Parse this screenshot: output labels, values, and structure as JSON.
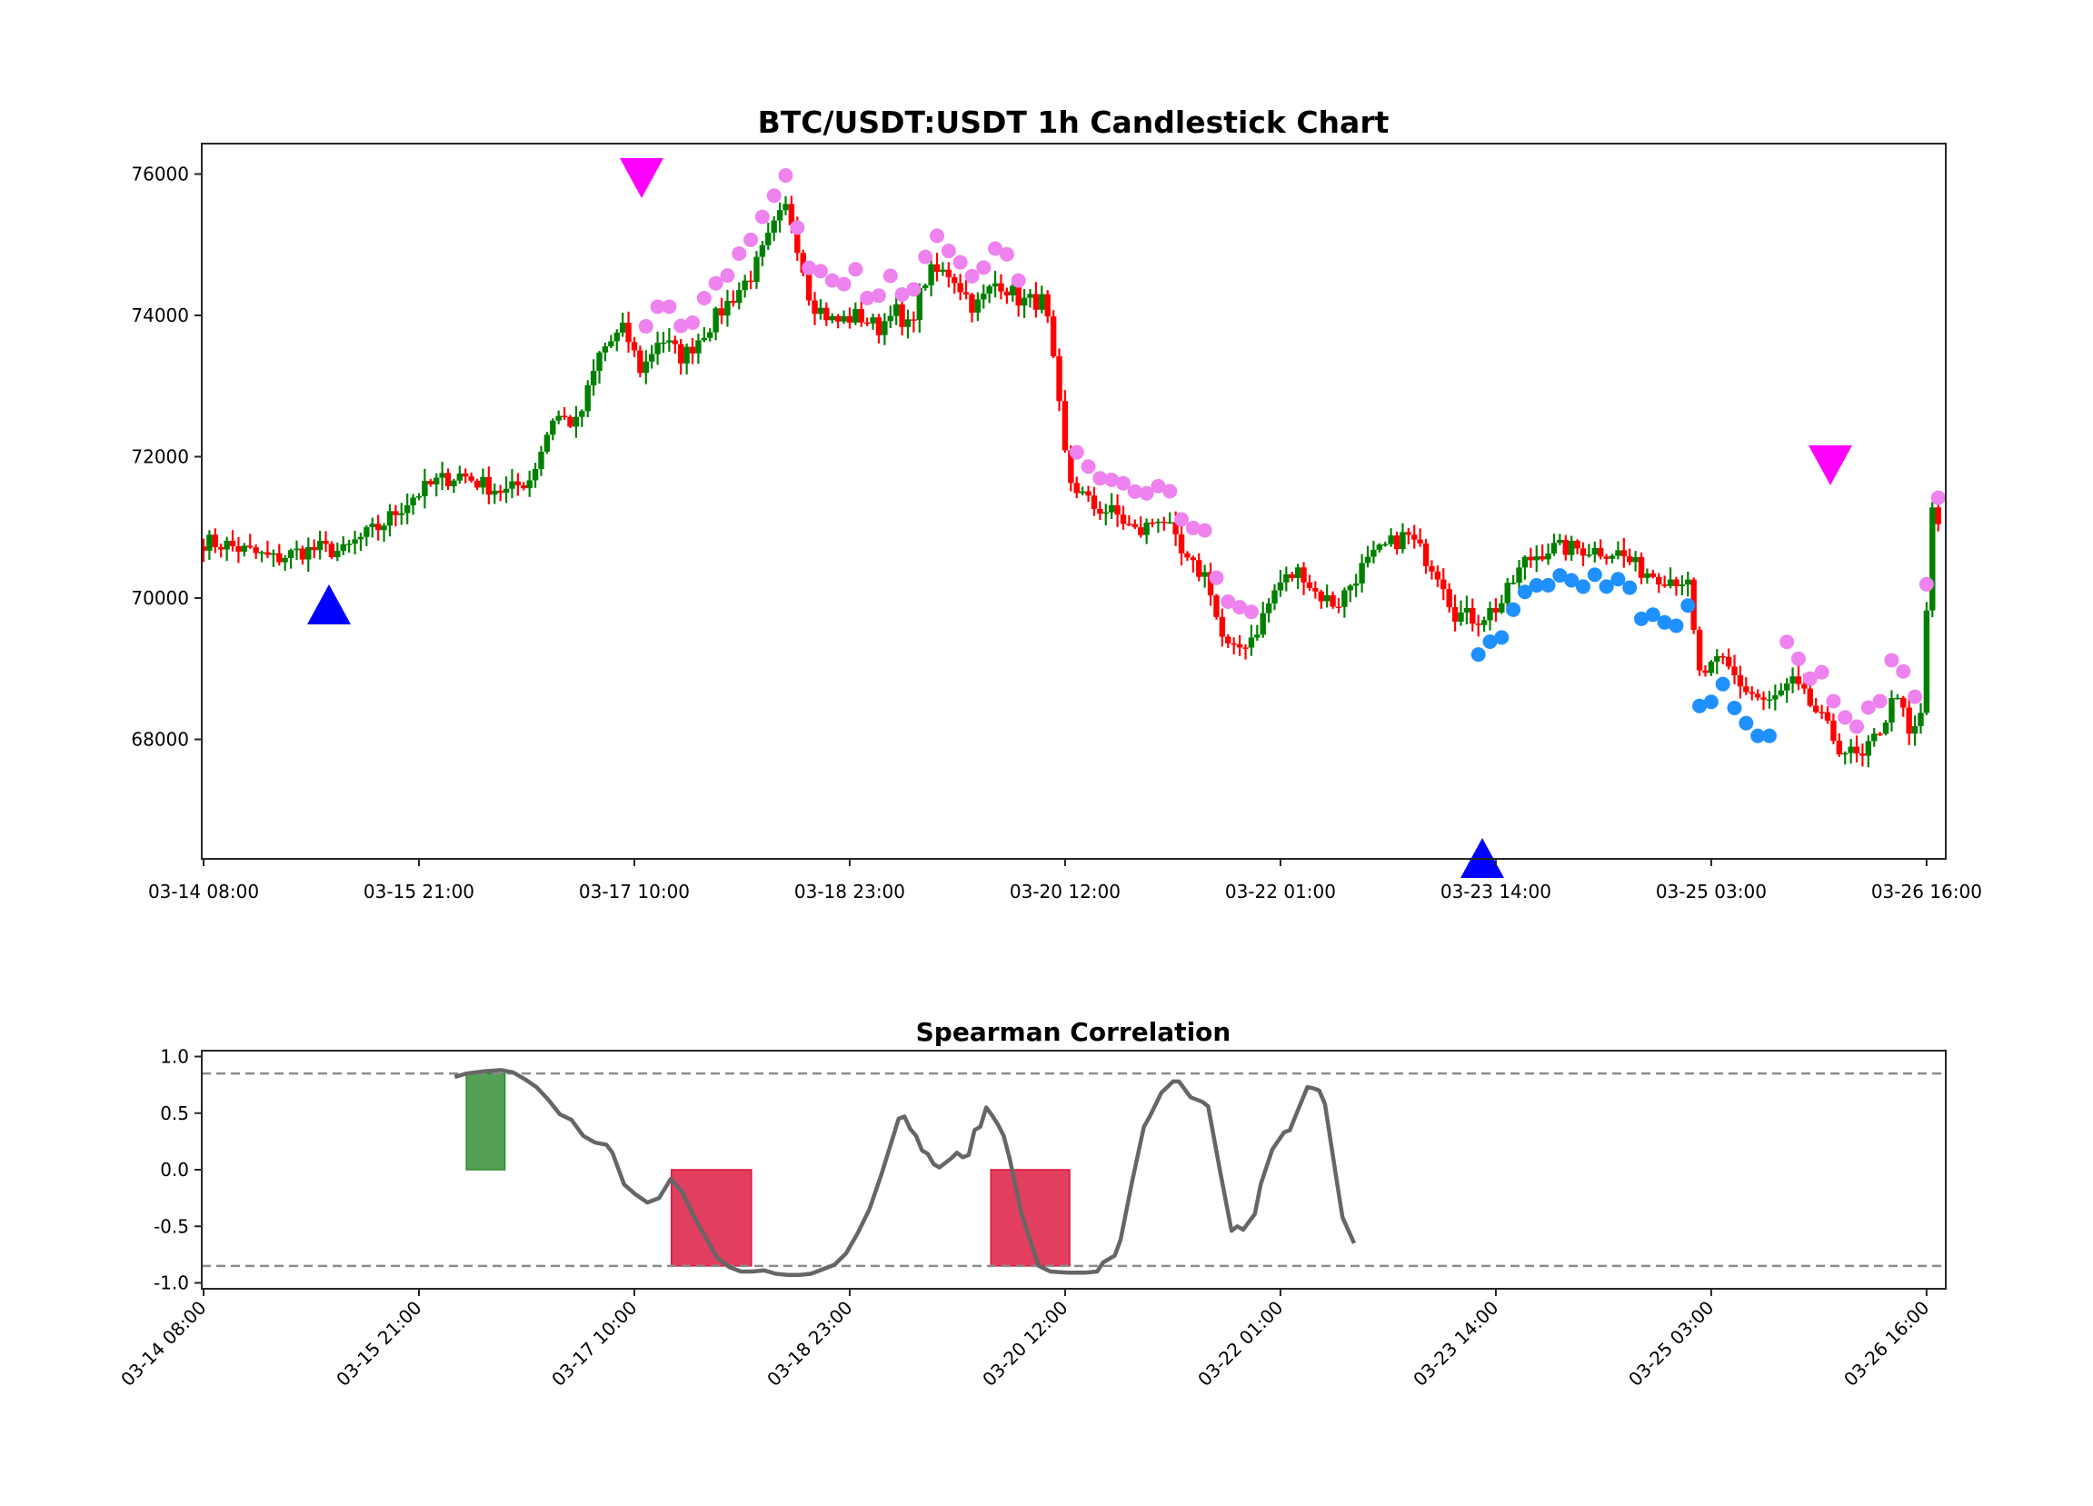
{
  "chart_data": [
    {
      "type": "candlestick",
      "title": "BTC/USDT:USDT 1h Candlestick Chart",
      "xlabel": "",
      "ylabel": "",
      "interval": "1h",
      "x_start": "03-14 08:00",
      "x_end_approx": "03-26 19:00",
      "ylim": [
        66300,
        76250
      ],
      "yticks": [
        68000,
        70000,
        72000,
        74000,
        76000
      ],
      "xticks": [
        "03-14 08:00",
        "03-15 21:00",
        "03-17 10:00",
        "03-18 23:00",
        "03-20 12:00",
        "03-22 01:00",
        "03-23 14:00",
        "03-25 03:00",
        "03-26 16:00"
      ],
      "xtick_hours": [
        0,
        37,
        74,
        111,
        148,
        185,
        222,
        259,
        296
      ],
      "grid": false,
      "colors": {
        "up": "#008000",
        "down": "#ff0000",
        "buy_signal": "#0000ff",
        "sell_signal": "#ff00ff",
        "upper_band_dots": "#ee82ee",
        "lower_band_dots": "#1e90ff"
      },
      "close_path_keypoints": [
        [
          0,
          70800
        ],
        [
          4,
          70750
        ],
        [
          8,
          70650
        ],
        [
          12,
          70550
        ],
        [
          16,
          70650
        ],
        [
          20,
          70700
        ],
        [
          24,
          70650
        ],
        [
          26,
          70800
        ],
        [
          30,
          71000
        ],
        [
          36,
          71450
        ],
        [
          40,
          71650
        ],
        [
          44,
          71750
        ],
        [
          48,
          71600
        ],
        [
          52,
          71500
        ],
        [
          56,
          71700
        ],
        [
          60,
          72600
        ],
        [
          64,
          72450
        ],
        [
          68,
          73500
        ],
        [
          72,
          73800
        ],
        [
          75,
          73200
        ],
        [
          78,
          73700
        ],
        [
          82,
          73400
        ],
        [
          86,
          73800
        ],
        [
          90,
          74200
        ],
        [
          94,
          74600
        ],
        [
          98,
          75300
        ],
        [
          100,
          75550
        ],
        [
          102,
          74900
        ],
        [
          104,
          74200
        ],
        [
          108,
          73900
        ],
        [
          112,
          74000
        ],
        [
          116,
          73800
        ],
        [
          118,
          74200
        ],
        [
          120,
          73700
        ],
        [
          124,
          74600
        ],
        [
          128,
          74600
        ],
        [
          132,
          74100
        ],
        [
          136,
          74500
        ],
        [
          140,
          74200
        ],
        [
          144,
          74200
        ],
        [
          146,
          73000
        ],
        [
          148,
          71700
        ],
        [
          152,
          71300
        ],
        [
          156,
          71200
        ],
        [
          160,
          70900
        ],
        [
          164,
          71200
        ],
        [
          168,
          70500
        ],
        [
          172,
          70300
        ],
        [
          174,
          69500
        ],
        [
          176,
          69200
        ],
        [
          180,
          69500
        ],
        [
          184,
          70200
        ],
        [
          188,
          70400
        ],
        [
          190,
          70100
        ],
        [
          194,
          69900
        ],
        [
          198,
          70400
        ],
        [
          202,
          70700
        ],
        [
          206,
          70900
        ],
        [
          208,
          70700
        ],
        [
          212,
          70300
        ],
        [
          214,
          69800
        ],
        [
          218,
          69700
        ],
        [
          222,
          69900
        ],
        [
          226,
          70500
        ],
        [
          230,
          70700
        ],
        [
          236,
          70700
        ],
        [
          242,
          70650
        ],
        [
          246,
          70400
        ],
        [
          250,
          70300
        ],
        [
          254,
          70250
        ],
        [
          256,
          68900
        ],
        [
          260,
          69100
        ],
        [
          264,
          68700
        ],
        [
          268,
          68500
        ],
        [
          272,
          68800
        ],
        [
          276,
          68400
        ],
        [
          280,
          67900
        ],
        [
          284,
          67700
        ],
        [
          288,
          68300
        ],
        [
          290,
          68700
        ],
        [
          292,
          68000
        ],
        [
          294,
          68300
        ],
        [
          296,
          71300
        ],
        [
          298,
          70600
        ]
      ],
      "buy_markers": [
        {
          "hour": 14,
          "price": 70400
        },
        {
          "hour": 147,
          "price": 67200
        }
      ],
      "sell_markers": [
        {
          "hour": 50,
          "price": 75850
        },
        {
          "hour": 188,
          "price": 72150
        }
      ]
    },
    {
      "type": "line",
      "title": "Spearman Correlation",
      "xlabel": "",
      "ylabel": "",
      "ylim": [
        -1.05,
        1.05
      ],
      "yticks": [
        -1.0,
        -0.5,
        0.0,
        0.5,
        1.0
      ],
      "threshold_lines": [
        0.85,
        -0.85
      ],
      "line_color": "#666666",
      "series": [
        {
          "name": "spearman",
          "points": [
            [
              43,
              0.82
            ],
            [
              45,
              0.85
            ],
            [
              48,
              0.87
            ],
            [
              51,
              0.88
            ],
            [
              53,
              0.86
            ],
            [
              55,
              0.8
            ],
            [
              57,
              0.73
            ],
            [
              59,
              0.62
            ],
            [
              61,
              0.49
            ],
            [
              63,
              0.44
            ],
            [
              65,
              0.3
            ],
            [
              67,
              0.24
            ],
            [
              69,
              0.22
            ],
            [
              70,
              0.15
            ],
            [
              72,
              -0.13
            ],
            [
              74,
              -0.22
            ],
            [
              76,
              -0.29
            ],
            [
              78,
              -0.25
            ],
            [
              80,
              -0.08
            ],
            [
              82,
              -0.2
            ],
            [
              84,
              -0.42
            ],
            [
              86,
              -0.6
            ],
            [
              88,
              -0.78
            ],
            [
              90,
              -0.86
            ],
            [
              92,
              -0.9
            ],
            [
              94,
              -0.9
            ],
            [
              96,
              -0.89
            ],
            [
              98,
              -0.92
            ],
            [
              100,
              -0.93
            ],
            [
              102,
              -0.93
            ],
            [
              104,
              -0.92
            ],
            [
              106,
              -0.88
            ],
            [
              108,
              -0.84
            ],
            [
              110,
              -0.74
            ],
            [
              112,
              -0.56
            ],
            [
              114,
              -0.35
            ],
            [
              116,
              -0.05
            ],
            [
              118,
              0.28
            ],
            [
              119,
              0.45
            ],
            [
              120,
              0.47
            ],
            [
              121,
              0.36
            ],
            [
              122,
              0.3
            ],
            [
              123,
              0.17
            ],
            [
              124,
              0.14
            ],
            [
              125,
              0.05
            ],
            [
              126,
              0.02
            ],
            [
              128,
              0.1
            ],
            [
              129,
              0.15
            ],
            [
              130,
              0.11
            ],
            [
              131,
              0.13
            ],
            [
              132,
              0.35
            ],
            [
              133,
              0.38
            ],
            [
              134,
              0.55
            ],
            [
              135,
              0.48
            ],
            [
              136,
              0.4
            ],
            [
              137,
              0.3
            ],
            [
              138,
              0.1
            ],
            [
              140,
              -0.38
            ],
            [
              142,
              -0.7
            ],
            [
              143,
              -0.85
            ],
            [
              145,
              -0.9
            ],
            [
              148,
              -0.91
            ],
            [
              151,
              -0.91
            ],
            [
              153,
              -0.9
            ],
            [
              154,
              -0.82
            ],
            [
              156,
              -0.76
            ],
            [
              157,
              -0.62
            ],
            [
              159,
              -0.1
            ],
            [
              161,
              0.38
            ],
            [
              162,
              0.47
            ],
            [
              164,
              0.68
            ],
            [
              166,
              0.78
            ],
            [
              167,
              0.78
            ],
            [
              169,
              0.64
            ],
            [
              170,
              0.62
            ],
            [
              171,
              0.6
            ],
            [
              172,
              0.56
            ],
            [
              174,
              0.0
            ],
            [
              176,
              -0.54
            ],
            [
              177,
              -0.5
            ],
            [
              178,
              -0.53
            ],
            [
              180,
              -0.39
            ],
            [
              181,
              -0.13
            ],
            [
              183,
              0.18
            ],
            [
              185,
              0.33
            ],
            [
              186,
              0.35
            ],
            [
              187,
              0.48
            ],
            [
              189,
              0.73
            ],
            [
              190,
              0.72
            ],
            [
              191,
              0.7
            ],
            [
              192,
              0.58
            ],
            [
              194,
              -0.09
            ],
            [
              195,
              -0.42
            ],
            [
              197,
              -0.65
            ]
          ]
        }
      ],
      "shaded_regions": [
        {
          "type": "positive",
          "color": "#2e8b2e",
          "hour_start": 45.0,
          "hour_end": 51.6,
          "from": 0.0,
          "to": 0.85
        },
        {
          "type": "negative",
          "color": "#dc143c",
          "hour_start": 80.1,
          "hour_end": 93.8,
          "from": 0.0,
          "to": -0.85
        },
        {
          "type": "negative",
          "color": "#dc143c",
          "hour_start": 134.8,
          "hour_end": 148.3,
          "from": 0.0,
          "to": -0.85
        }
      ],
      "x_mapping_note": "hours in this panel are on the same axis as the candlestick chart scaled by 0.66 (plot uses the same x ticks)"
    }
  ],
  "top_chart": {
    "title": "BTC/USDT:USDT 1h Candlestick Chart"
  },
  "bottom_chart": {
    "title": "Spearman Correlation"
  },
  "y_tick_labels_top": [
    "76000",
    "74000",
    "72000",
    "70000",
    "68000"
  ],
  "y_tick_labels_bottom": [
    "1.0",
    "0.5",
    "0.0",
    "-0.5",
    "-1.0"
  ],
  "x_tick_labels": [
    "03-14 08:00",
    "03-15 21:00",
    "03-17 10:00",
    "03-18 23:00",
    "03-20 12:00",
    "03-22 01:00",
    "03-23 14:00",
    "03-25 03:00",
    "03-26 16:00"
  ]
}
